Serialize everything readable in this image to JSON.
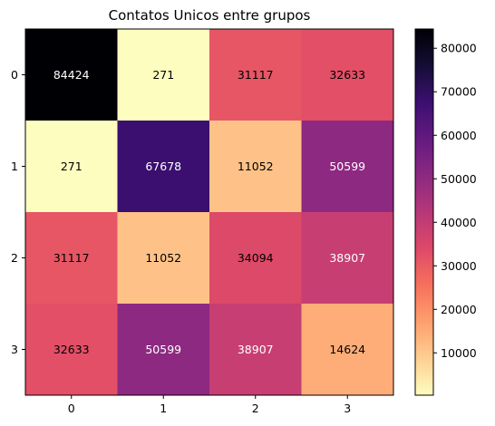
{
  "chart_data": {
    "type": "heatmap",
    "title": "Contatos Unicos entre grupos",
    "xlabel": "",
    "ylabel": "",
    "x_categories": [
      "0",
      "1",
      "2",
      "3"
    ],
    "y_categories": [
      "0",
      "1",
      "2",
      "3"
    ],
    "values": [
      [
        84424,
        271,
        31117,
        32633
      ],
      [
        271,
        67678,
        11052,
        50599
      ],
      [
        31117,
        11052,
        34094,
        38907
      ],
      [
        32633,
        50599,
        38907,
        14624
      ]
    ],
    "colormap": "magma_r",
    "value_range": [
      271,
      84424
    ],
    "colorbar": {
      "ticks": [
        10000,
        20000,
        30000,
        40000,
        50000,
        60000,
        70000,
        80000
      ],
      "tick_labels": [
        "10000",
        "20000",
        "30000",
        "40000",
        "50000",
        "60000",
        "70000",
        "80000"
      ]
    },
    "grid": false
  }
}
